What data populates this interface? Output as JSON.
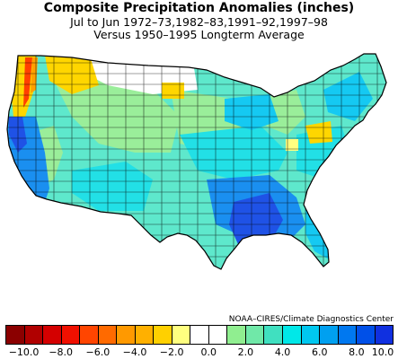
{
  "title": {
    "line1": "Composite Precipitation Anomalies (inches)",
    "line2": "Jul to Jun  1972–73,1982–83,1991–92,1997–98",
    "line3": "Versus 1950–1995 Longterm Average"
  },
  "credit": "NOAA–CIRES/Climate Diagnostics Center",
  "legend": {
    "colors": [
      "#8b0000",
      "#b00000",
      "#d40000",
      "#f01000",
      "#ff4500",
      "#ff6a00",
      "#ff9900",
      "#ffb000",
      "#ffd000",
      "#ffff80",
      "#ffffff",
      "#ffffff",
      "#90ee90",
      "#70e8a8",
      "#40e0c0",
      "#00e8e8",
      "#00c8f0",
      "#00a0f0",
      "#0078f0",
      "#0050e8",
      "#1030e0"
    ],
    "tick_labels": [
      "−10.0",
      "−8.0",
      "−6.0",
      "−4.0",
      "−2.0",
      "0.0",
      "2.0",
      "4.0",
      "6.0",
      "8.0",
      "10.0"
    ]
  },
  "map_colors": {
    "base": "#5ee8cc",
    "cyan": "#22e0e6",
    "green": "#9aee9a",
    "light_blue": "#15c9f2",
    "blue": "#1a8ff0",
    "dark_blue": "#1f52e6",
    "white": "#ffffff",
    "yellow": "#ffd600",
    "orange": "#ffa000",
    "red": "#ff4000",
    "outline": "#000000",
    "ocean": "#ffffff"
  }
}
